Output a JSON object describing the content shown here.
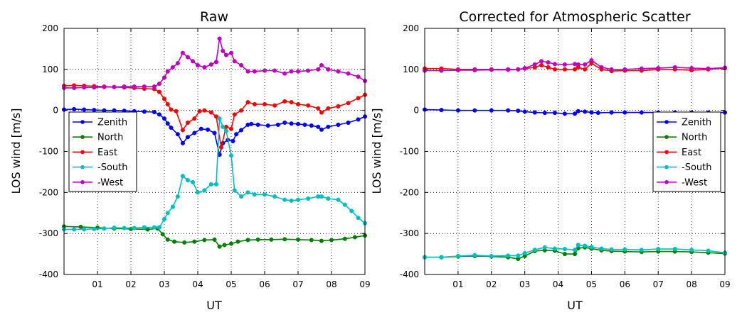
{
  "chart_data": [
    {
      "type": "line",
      "title": "Raw",
      "xlabel": "UT",
      "ylabel": "LOS wind [m/s]",
      "xlim": [
        0,
        9
      ],
      "ylim": [
        -400,
        200
      ],
      "xticks": [
        "01",
        "02",
        "03",
        "04",
        "05",
        "06",
        "07",
        "08",
        "09"
      ],
      "yticks": [
        200,
        100,
        0,
        -100,
        -200,
        -300,
        -400
      ],
      "grid": true,
      "legend_position": "left",
      "series": [
        {
          "name": "Zenith",
          "color": "#0000ff",
          "x": [
            0,
            0.3,
            0.6,
            0.9,
            1.2,
            1.5,
            1.8,
            2.1,
            2.4,
            2.7,
            2.85,
            3.0,
            3.1,
            3.2,
            3.4,
            3.55,
            3.7,
            3.9,
            4.1,
            4.3,
            4.5,
            4.65,
            4.75,
            4.9,
            5.05,
            5.15,
            5.3,
            5.5,
            5.6,
            5.8,
            6.1,
            6.4,
            6.6,
            6.8,
            7.0,
            7.2,
            7.4,
            7.6,
            7.7,
            7.9,
            8.2,
            8.5,
            8.8,
            9.0
          ],
          "y": [
            2,
            3,
            2,
            1,
            0,
            0,
            -1,
            -2,
            -3,
            -4,
            -10,
            -20,
            -32,
            -42,
            -58,
            -80,
            -65,
            -55,
            -45,
            -47,
            -55,
            -108,
            -80,
            -72,
            -75,
            -58,
            -48,
            -35,
            -33,
            -35,
            -37,
            -35,
            -30,
            -32,
            -33,
            -35,
            -37,
            -40,
            -47,
            -40,
            -35,
            -30,
            -22,
            -15
          ]
        },
        {
          "name": "North",
          "color": "#008000",
          "x": [
            0,
            0.5,
            1.0,
            1.5,
            2.0,
            2.5,
            2.8,
            2.95,
            3.1,
            3.3,
            3.6,
            3.9,
            4.2,
            4.5,
            4.65,
            4.8,
            5.0,
            5.2,
            5.5,
            5.8,
            6.2,
            6.6,
            7.0,
            7.4,
            7.7,
            8.0,
            8.4,
            8.7,
            9.0
          ],
          "y": [
            -283,
            -284,
            -286,
            -288,
            -289,
            -290,
            -288,
            -302,
            -315,
            -320,
            -322,
            -320,
            -316,
            -315,
            -332,
            -328,
            -325,
            -320,
            -316,
            -315,
            -315,
            -314,
            -315,
            -316,
            -318,
            -316,
            -313,
            -309,
            -305
          ]
        },
        {
          "name": "East",
          "color": "#ff0000",
          "x": [
            0,
            0.3,
            0.6,
            0.9,
            1.2,
            1.5,
            1.8,
            2.1,
            2.4,
            2.7,
            2.85,
            3.0,
            3.1,
            3.2,
            3.35,
            3.55,
            3.7,
            3.9,
            4.05,
            4.2,
            4.4,
            4.55,
            4.7,
            4.85,
            5.0,
            5.1,
            5.3,
            5.5,
            5.7,
            6.0,
            6.3,
            6.6,
            6.8,
            7.0,
            7.3,
            7.6,
            7.7,
            7.9,
            8.2,
            8.5,
            8.8,
            9.0
          ],
          "y": [
            60,
            61,
            60,
            59,
            58,
            57,
            56,
            55,
            53,
            52,
            45,
            28,
            15,
            2,
            -2,
            -48,
            -30,
            -20,
            -2,
            0,
            -5,
            -15,
            -90,
            -40,
            -45,
            -10,
            0,
            20,
            15,
            15,
            12,
            22,
            20,
            15,
            12,
            5,
            -5,
            5,
            10,
            18,
            30,
            38
          ]
        },
        {
          "name": "-South",
          "color": "#00bfbf",
          "x": [
            0,
            0.3,
            0.6,
            0.9,
            1.2,
            1.5,
            1.8,
            2.1,
            2.4,
            2.7,
            2.85,
            3.0,
            3.1,
            3.25,
            3.4,
            3.55,
            3.7,
            3.85,
            4.0,
            4.2,
            4.4,
            4.55,
            4.65,
            4.75,
            4.85,
            5.0,
            5.1,
            5.3,
            5.5,
            5.7,
            6.0,
            6.3,
            6.6,
            6.8,
            7.0,
            7.3,
            7.6,
            7.7,
            7.9,
            8.2,
            8.4,
            8.6,
            8.8,
            9.0
          ],
          "y": [
            -290,
            -290,
            -290,
            -289,
            -288,
            -286,
            -287,
            -287,
            -285,
            -285,
            -285,
            -265,
            -250,
            -235,
            -210,
            -160,
            -170,
            -175,
            -200,
            -195,
            -180,
            -180,
            -20,
            -40,
            -50,
            -110,
            -195,
            -210,
            -200,
            -205,
            -205,
            -210,
            -218,
            -220,
            -218,
            -215,
            -210,
            -210,
            -215,
            -218,
            -230,
            -245,
            -262,
            -275
          ]
        },
        {
          "name": "-West",
          "color": "#bf00bf",
          "x": [
            0,
            0.3,
            0.6,
            0.9,
            1.2,
            1.5,
            1.8,
            2.1,
            2.4,
            2.7,
            2.85,
            3.0,
            3.1,
            3.25,
            3.4,
            3.55,
            3.7,
            3.85,
            4.0,
            4.2,
            4.4,
            4.55,
            4.65,
            4.75,
            4.85,
            5.0,
            5.1,
            5.3,
            5.5,
            5.7,
            6.0,
            6.3,
            6.6,
            6.8,
            7.0,
            7.3,
            7.6,
            7.7,
            7.9,
            8.2,
            8.5,
            8.8,
            9.0
          ],
          "y": [
            55,
            55,
            56,
            56,
            57,
            57,
            58,
            58,
            58,
            58,
            65,
            80,
            95,
            105,
            115,
            140,
            130,
            120,
            110,
            105,
            112,
            118,
            175,
            145,
            135,
            140,
            120,
            110,
            95,
            95,
            97,
            97,
            90,
            95,
            95,
            97,
            100,
            110,
            100,
            95,
            90,
            82,
            72
          ]
        }
      ]
    },
    {
      "type": "line",
      "title": "Corrected for Atmospheric Scatter",
      "xlabel": "UT",
      "ylabel": "LOS wind [m/s]",
      "xlim": [
        0,
        9
      ],
      "ylim": [
        -400,
        200
      ],
      "xticks": [
        "01",
        "02",
        "03",
        "04",
        "05",
        "06",
        "07",
        "08",
        "09"
      ],
      "yticks": [
        200,
        100,
        0,
        -100,
        -200,
        -300,
        -400
      ],
      "grid": true,
      "legend_position": "right",
      "series": [
        {
          "name": "Zenith",
          "color": "#0000ff",
          "x": [
            0,
            0.5,
            1.0,
            1.5,
            2.0,
            2.5,
            2.8,
            3.0,
            3.3,
            3.6,
            3.9,
            4.2,
            4.5,
            4.6,
            4.8,
            5.0,
            5.2,
            5.6,
            6.0,
            6.5,
            7.0,
            7.5,
            8.0,
            8.5,
            9.0
          ],
          "y": [
            2,
            1,
            0,
            0,
            0,
            0,
            -1,
            -3,
            -5,
            -6,
            -6,
            -8,
            -8,
            -2,
            -3,
            -5,
            -6,
            -5,
            -5,
            -5,
            -5,
            -5,
            -5,
            -5,
            -5
          ]
        },
        {
          "name": "North",
          "color": "#008000",
          "x": [
            0,
            0.5,
            1.0,
            1.5,
            2.0,
            2.5,
            2.8,
            3.0,
            3.3,
            3.6,
            3.9,
            4.2,
            4.5,
            4.6,
            4.8,
            5.0,
            5.3,
            5.6,
            6.0,
            6.5,
            7.0,
            7.5,
            8.0,
            8.5,
            9.0
          ],
          "y": [
            -358,
            -358,
            -356,
            -355,
            -356,
            -358,
            -362,
            -355,
            -343,
            -341,
            -342,
            -350,
            -350,
            -336,
            -334,
            -337,
            -341,
            -343,
            -344,
            -345,
            -344,
            -344,
            -345,
            -347,
            -349
          ]
        },
        {
          "name": "East",
          "color": "#ff0000",
          "x": [
            0,
            0.5,
            1.0,
            1.5,
            2.0,
            2.5,
            2.8,
            3.0,
            3.3,
            3.5,
            3.7,
            3.9,
            4.2,
            4.5,
            4.6,
            4.8,
            5.0,
            5.3,
            5.6,
            6.0,
            6.5,
            7.0,
            7.5,
            8.0,
            8.5,
            9.0
          ],
          "y": [
            102,
            102,
            100,
            100,
            100,
            100,
            100,
            102,
            105,
            110,
            105,
            100,
            100,
            100,
            105,
            100,
            115,
            100,
            96,
            97,
            97,
            100,
            100,
            98,
            100,
            103
          ]
        },
        {
          "name": "-South",
          "color": "#00bfbf",
          "x": [
            0,
            0.5,
            1.0,
            1.5,
            2.0,
            2.5,
            2.8,
            3.0,
            3.3,
            3.6,
            3.9,
            4.2,
            4.5,
            4.6,
            4.8,
            5.0,
            5.3,
            5.6,
            6.0,
            6.5,
            7.0,
            7.5,
            8.0,
            8.5,
            9.0
          ],
          "y": [
            -358,
            -358,
            -355,
            -353,
            -355,
            -354,
            -354,
            -348,
            -340,
            -334,
            -337,
            -338,
            -340,
            -328,
            -330,
            -333,
            -337,
            -339,
            -339,
            -340,
            -338,
            -338,
            -340,
            -342,
            -347
          ]
        },
        {
          "name": "-West",
          "color": "#bf00bf",
          "x": [
            0,
            0.5,
            1.0,
            1.5,
            2.0,
            2.5,
            2.8,
            3.0,
            3.3,
            3.5,
            3.7,
            3.9,
            4.2,
            4.5,
            4.6,
            4.8,
            5.0,
            5.3,
            5.6,
            6.0,
            6.5,
            7.0,
            7.5,
            8.0,
            8.5,
            9.0
          ],
          "y": [
            97,
            97,
            98,
            98,
            99,
            99,
            100,
            103,
            112,
            120,
            117,
            113,
            112,
            113,
            112,
            112,
            122,
            105,
            100,
            100,
            102,
            103,
            105,
            103,
            102,
            104
          ]
        }
      ]
    }
  ]
}
